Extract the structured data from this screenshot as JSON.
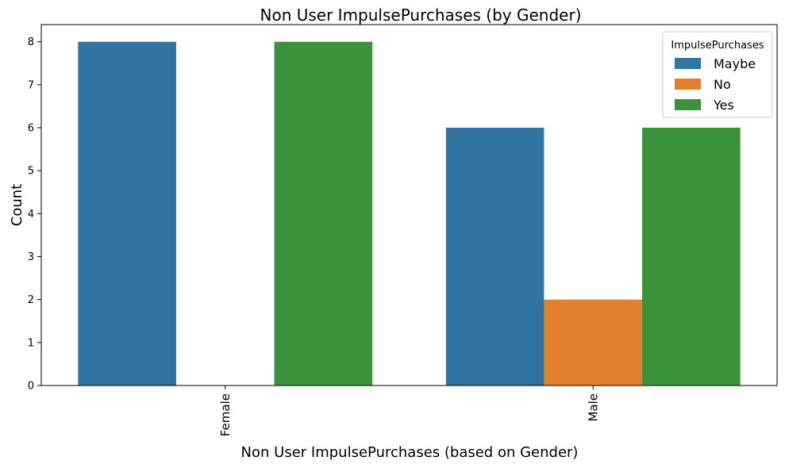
{
  "chart_data": {
    "type": "bar",
    "title": "Non User ImpulsePurchases (by Gender)",
    "xlabel": "Non User ImpulsePurchases (based on Gender)",
    "ylabel": "Count",
    "categories": [
      "Female",
      "Male"
    ],
    "series": [
      {
        "name": "Maybe",
        "color": "#3274a1",
        "values": [
          8,
          6
        ]
      },
      {
        "name": "No",
        "color": "#e1812c",
        "values": [
          0,
          2
        ]
      },
      {
        "name": "Yes",
        "color": "#3a923a",
        "values": [
          8,
          6
        ]
      }
    ],
    "ylim": [
      0,
      8.4
    ],
    "yticks": [
      "0",
      "1",
      "2",
      "3",
      "4",
      "5",
      "6",
      "7",
      "8"
    ],
    "grid": false,
    "legend": {
      "title": "ImpulsePurchases",
      "position": "top-right"
    }
  }
}
